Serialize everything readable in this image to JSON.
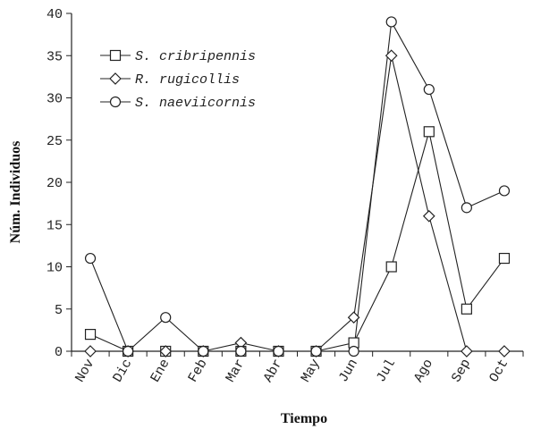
{
  "chart_data": {
    "type": "line",
    "xlabel": "Tiempo",
    "ylabel": "Núm. Individuos",
    "ylim": [
      0,
      40
    ],
    "yticks": [
      "0",
      "5",
      "10",
      "15",
      "20",
      "25",
      "30",
      "35",
      "40"
    ],
    "categories": [
      "Nov",
      "Dic",
      "Ene",
      "Feb",
      "Mar",
      "Abr",
      "May",
      "Jun",
      "Jul",
      "Ago",
      "Sep",
      "Oct"
    ],
    "legend_position": "top-left",
    "grid": false,
    "series": [
      {
        "name": "S. cribripennis",
        "marker": "square",
        "values": [
          2,
          0,
          0,
          0,
          0,
          0,
          0,
          1,
          10,
          26,
          5,
          11
        ]
      },
      {
        "name": "R. rugicollis",
        "marker": "diamond",
        "values": [
          0,
          0,
          0,
          0,
          1,
          0,
          0,
          4,
          35,
          16,
          0,
          0
        ]
      },
      {
        "name": "S. naeviicornis",
        "marker": "circle",
        "values": [
          11,
          0,
          4,
          0,
          0,
          0,
          0,
          0,
          39,
          31,
          17,
          19
        ]
      }
    ]
  }
}
